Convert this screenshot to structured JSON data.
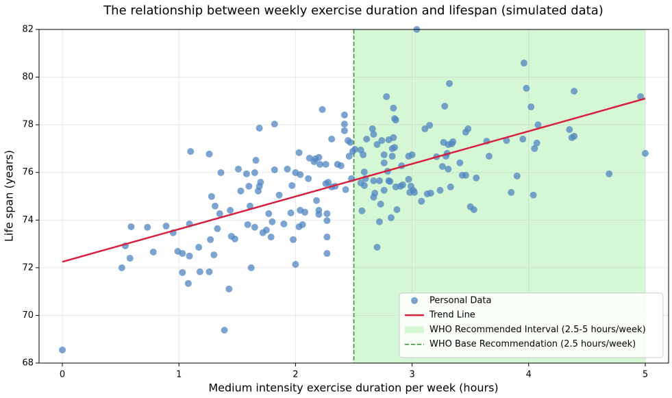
{
  "chart_data": {
    "type": "scatter",
    "title": "The relationship between weekly exercise duration and lifespan (simulated data)",
    "x_label": "Medium intensity exercise duration per week (hours)",
    "y_label": "Life span (years)",
    "xlim": [
      -0.2,
      5.2
    ],
    "ylim": [
      68,
      82
    ],
    "xticks": [
      0,
      1,
      2,
      3,
      4,
      5
    ],
    "yticks": [
      68,
      70,
      72,
      74,
      76,
      78,
      80,
      82
    ],
    "grid": true,
    "legend": "lower right",
    "spans": [
      {
        "name": "WHO Recommended Interval (2.5-5 hours/week)",
        "color": "#d6f7d6",
        "xmin": 2.5,
        "xmax": 5
      }
    ],
    "vlines": [
      {
        "name": "WHO Base Recommendation (2.5 hours/week)",
        "color": "#3d8f3d",
        "x": 2.5
      }
    ],
    "series": [
      {
        "name": "Personal Data",
        "color": "#4f86c0",
        "x": [
          0,
          0.51,
          0.54,
          0.58,
          0.59,
          0.73,
          0.78,
          0.89,
          0.95,
          0.99,
          1.03,
          1.03,
          1.08,
          1.09,
          1.1,
          1.09,
          1.17,
          1.18,
          1.26,
          1.26,
          1.27,
          1.28,
          1.3,
          1.31,
          1.33,
          1.35,
          1.36,
          1.43,
          1.39,
          1.44,
          1.45,
          1.48,
          1.51,
          1.53,
          1.58,
          1.59,
          1.6,
          1.61,
          1.62,
          1.65,
          1.65,
          1.66,
          1.68,
          1.69,
          1.7,
          1.69,
          1.72,
          1.75,
          1.77,
          1.79,
          1.8,
          1.82,
          1.82,
          1.86,
          1.9,
          1.93,
          1.96,
          1.97,
          1.98,
          2.0,
          2.0,
          2.03,
          2.03,
          2.04,
          2.04,
          2.06,
          2.08,
          2.11,
          2.12,
          2.16,
          2.17,
          2.18,
          2.2,
          2.2,
          2.2,
          2.21,
          2.23,
          2.26,
          2.26,
          2.27,
          2.27,
          2.27,
          2.27,
          2.28,
          2.31,
          2.31,
          2.34,
          2.36,
          2.39,
          2.42,
          2.42,
          2.42,
          2.43,
          2.45,
          2.46,
          2.47,
          2.48,
          2.49,
          2.51,
          2.56,
          2.56,
          2.57,
          2.58,
          2.59,
          2.6,
          2.59,
          2.61,
          2.66,
          2.67,
          2.67,
          2.68,
          2.67,
          2.7,
          2.7,
          2.72,
          2.73,
          2.72,
          2.74,
          2.76,
          2.76,
          2.76,
          2.78,
          2.79,
          2.8,
          2.8,
          2.81,
          2.82,
          2.83,
          2.83,
          2.84,
          2.84,
          2.85,
          2.85,
          2.86,
          2.86,
          2.87,
          2.9,
          2.91,
          2.92,
          2.97,
          2.97,
          2.98,
          2.99,
          3.0,
          3.01,
          3.02,
          3.04,
          3.08,
          3.11,
          3.13,
          3.15,
          3.16,
          3.21,
          3.24,
          3.26,
          3.27,
          3.28,
          3.29,
          3.3,
          3.31,
          3.32,
          3.31,
          3.33,
          3.34,
          3.35,
          3.41,
          3.43,
          3.46,
          3.46,
          3.48,
          3.5,
          3.53,
          3.55,
          3.64,
          3.66,
          3.81,
          3.85,
          3.9,
          3.95,
          3.96,
          3.98,
          4.02,
          4.04,
          4.05,
          4.07,
          4.08,
          4.35,
          4.37,
          4.39,
          4.39,
          4.69,
          4.96,
          5.0
        ],
        "values": [
          68.55,
          72.0,
          72.92,
          72.4,
          73.72,
          73.7,
          72.66,
          73.75,
          73.47,
          72.69,
          71.8,
          72.6,
          71.34,
          73.84,
          76.88,
          72.49,
          72.86,
          71.83,
          76.77,
          71.83,
          73.18,
          74.99,
          72.54,
          74.59,
          73.64,
          74.27,
          75.99,
          71.11,
          69.38,
          74.41,
          73.32,
          73.21,
          76.14,
          75.22,
          75.94,
          73.81,
          75.42,
          74.59,
          72.0,
          73.7,
          75.99,
          76.51,
          75.22,
          75.42,
          75.59,
          77.86,
          73.47,
          73.58,
          74.27,
          73.29,
          73.93,
          76.11,
          78.03,
          75.05,
          73.84,
          76.14,
          74.3,
          75.45,
          73.18,
          72.14,
          75.99,
          73.72,
          76.83,
          75.91,
          74.41,
          73.81,
          74.33,
          75.74,
          76.6,
          76.45,
          76.57,
          74.82,
          74.24,
          76.63,
          74.41,
          76.34,
          78.64,
          75.53,
          76.34,
          73.98,
          73.29,
          74.27,
          72.6,
          75.59,
          77.4,
          75.39,
          75.42,
          76.34,
          76.28,
          78.41,
          78.03,
          77.75,
          75.28,
          77.34,
          76.68,
          77.26,
          75.74,
          76.88,
          76.97,
          76.94,
          75.56,
          74.39,
          76.74,
          76.02,
          75.74,
          75.45,
          77.4,
          77.83,
          77.6,
          75.65,
          75.13,
          74.96,
          77.17,
          72.86,
          75.65,
          74.67,
          73.93,
          77.34,
          76.4,
          76.74,
          75.25,
          79.18,
          76.05,
          77.37,
          75.65,
          75.62,
          74.1,
          77.0,
          76.68,
          78.7,
          77.46,
          78.26,
          77.05,
          78.2,
          75.39,
          74.44,
          75.42,
          76.28,
          75.48,
          75.71,
          76.68,
          75.16,
          75.42,
          76.74,
          75.25,
          75.16,
          82.0,
          74.79,
          77.83,
          75.1,
          77.98,
          75.13,
          76.66,
          75.25,
          76.25,
          77.26,
          78.78,
          76.68,
          76.8,
          77.17,
          79.73,
          76.14,
          75.39,
          77.2,
          77.29,
          76.4,
          75.88,
          77.69,
          75.88,
          77.83,
          74.56,
          74.44,
          75.77,
          77.31,
          76.68,
          77.34,
          75.16,
          75.85,
          77.4,
          80.59,
          79.53,
          78.75,
          75.05,
          77.0,
          77.23,
          78.0,
          77.8,
          77.46,
          77.52,
          79.41,
          75.94,
          79.18,
          76.8
        ]
      },
      {
        "name": "Trend Line",
        "type": "line",
        "color": "#d6203e",
        "x": [
          0,
          5
        ],
        "values": [
          72.25,
          79.1
        ]
      }
    ]
  }
}
